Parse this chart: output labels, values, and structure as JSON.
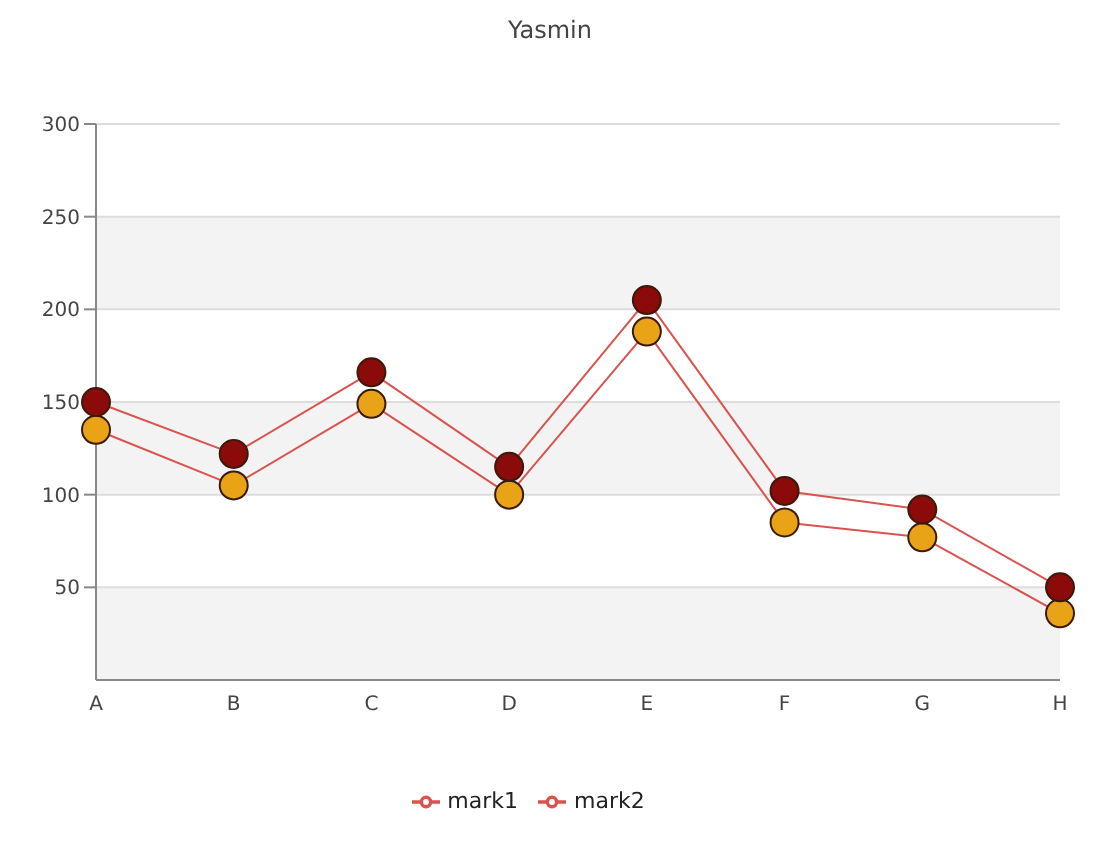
{
  "chart_data": {
    "type": "line",
    "title": "Yasmin",
    "categories": [
      "A",
      "B",
      "C",
      "D",
      "E",
      "F",
      "G",
      "H"
    ],
    "series": [
      {
        "name": "mark1",
        "color": "#e8a317",
        "values": [
          135,
          105,
          149,
          100,
          188,
          85,
          77,
          36
        ]
      },
      {
        "name": "mark2",
        "color": "#8b0a0a",
        "values": [
          150,
          122,
          166,
          115,
          205,
          102,
          92,
          50
        ]
      }
    ],
    "ylim": [
      0,
      300
    ],
    "yticks": [
      50,
      100,
      150,
      200,
      250,
      300
    ],
    "grid": "y",
    "legend": "bottom",
    "marker": "circle"
  }
}
